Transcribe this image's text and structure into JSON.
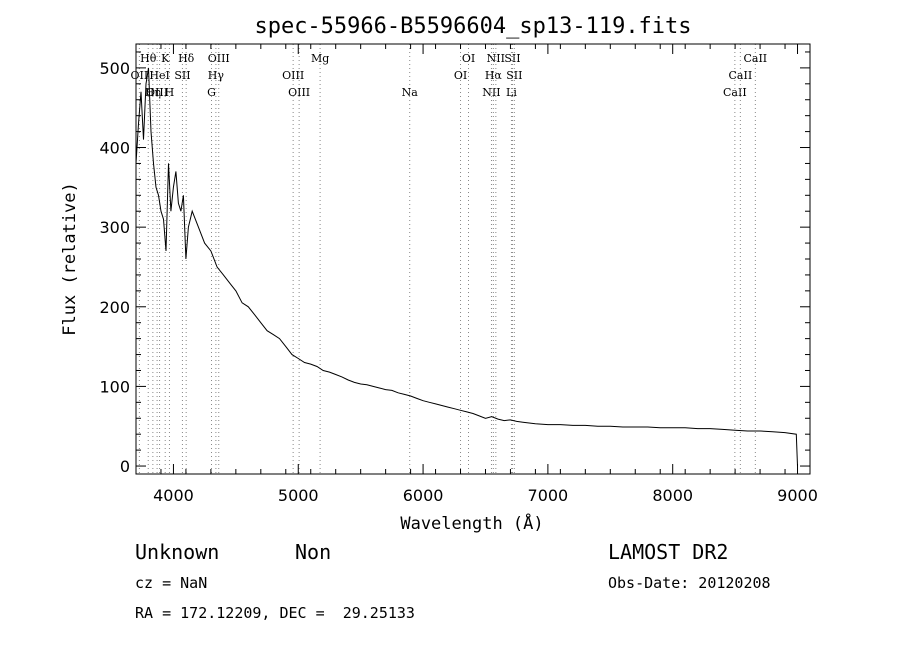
{
  "chart_data": {
    "type": "line",
    "title": "spec-55966-B5596604_sp13-119.fits",
    "xlabel": "Wavelength (Å)",
    "ylabel": "Flux (relative)",
    "xlim": [
      3700,
      9100
    ],
    "ylim": [
      -10,
      530
    ],
    "xticks": [
      4000,
      5000,
      6000,
      7000,
      8000,
      9000
    ],
    "yticks": [
      0,
      100,
      200,
      300,
      400,
      500
    ],
    "grid": false,
    "series": [
      {
        "x": [
          3700,
          3720,
          3740,
          3760,
          3780,
          3800,
          3820,
          3840,
          3860,
          3880,
          3900,
          3920,
          3940,
          3960,
          3980,
          4000,
          4020,
          4040,
          4060,
          4080,
          4100,
          4120,
          4150,
          4200,
          4250,
          4300,
          4350,
          4400,
          4450,
          4500,
          4550,
          4600,
          4650,
          4700,
          4750,
          4800,
          4850,
          4900,
          4950,
          5000,
          5050,
          5100,
          5150,
          5200,
          5250,
          5300,
          5350,
          5400,
          5450,
          5500,
          5550,
          5600,
          5650,
          5700,
          5750,
          5800,
          5850,
          5900,
          5950,
          6000,
          6050,
          6100,
          6150,
          6200,
          6250,
          6300,
          6350,
          6400,
          6450,
          6500,
          6550,
          6600,
          6650,
          6700,
          6750,
          6800,
          6900,
          7000,
          7100,
          7200,
          7300,
          7400,
          7500,
          7600,
          7700,
          7800,
          7900,
          8000,
          8100,
          8200,
          8300,
          8400,
          8500,
          8600,
          8700,
          8800,
          8900,
          8990,
          9000
        ],
        "y": [
          380,
          430,
          470,
          410,
          480,
          500,
          420,
          380,
          350,
          340,
          320,
          310,
          270,
          380,
          320,
          350,
          370,
          330,
          320,
          340,
          260,
          300,
          320,
          300,
          280,
          270,
          250,
          240,
          230,
          220,
          205,
          200,
          190,
          180,
          170,
          165,
          160,
          150,
          140,
          135,
          130,
          128,
          125,
          120,
          118,
          115,
          112,
          108,
          105,
          103,
          102,
          100,
          98,
          96,
          95,
          92,
          90,
          88,
          85,
          82,
          80,
          78,
          76,
          74,
          72,
          70,
          68,
          66,
          63,
          60,
          62,
          59,
          57,
          58,
          56,
          55,
          53,
          52,
          52,
          51,
          51,
          50,
          50,
          49,
          49,
          49,
          48,
          48,
          48,
          47,
          47,
          46,
          45,
          44,
          44,
          43,
          42,
          40,
          0
        ],
        "color": "#000000"
      }
    ],
    "lines": [
      {
        "name": "OII",
        "wave": 3727,
        "row": 1
      },
      {
        "name": "OIII",
        "wave": 3869,
        "row": 2
      },
      {
        "name": "Hθ",
        "wave": 3798,
        "row": 0
      },
      {
        "name": "Hη",
        "wave": 3835,
        "row": 2
      },
      {
        "name": "HeI",
        "wave": 3889,
        "row": 1
      },
      {
        "name": "K",
        "wave": 3934,
        "row": 0
      },
      {
        "name": "SII",
        "wave": 4072,
        "row": 1
      },
      {
        "name": "H",
        "wave": 3968,
        "row": 2
      },
      {
        "name": "Hδ",
        "wave": 4102,
        "row": 0
      },
      {
        "name": "OIII",
        "wave": 4363,
        "row": 0
      },
      {
        "name": "Hγ",
        "wave": 4340,
        "row": 1
      },
      {
        "name": "G",
        "wave": 4305,
        "row": 2
      },
      {
        "name": "OIII",
        "wave": 4959,
        "row": 1
      },
      {
        "name": "OIII",
        "wave": 5007,
        "row": 2
      },
      {
        "name": "Mg",
        "wave": 5175,
        "row": 0
      },
      {
        "name": "Na",
        "wave": 5893,
        "row": 2
      },
      {
        "name": "OI",
        "wave": 6300,
        "row": 1
      },
      {
        "name": "OI",
        "wave": 6364,
        "row": 0
      },
      {
        "name": "NII",
        "wave": 6548,
        "row": 2
      },
      {
        "name": "Hα",
        "wave": 6563,
        "row": 1
      },
      {
        "name": "NII",
        "wave": 6583,
        "row": 0
      },
      {
        "name": "SII",
        "wave": 6716,
        "row": 0
      },
      {
        "name": "SII",
        "wave": 6731,
        "row": 1
      },
      {
        "name": "Li",
        "wave": 6708,
        "row": 2
      },
      {
        "name": "CaII",
        "wave": 8498,
        "row": 2
      },
      {
        "name": "CaII",
        "wave": 8542,
        "row": 1
      },
      {
        "name": "CaII",
        "wave": 8662,
        "row": 0
      }
    ]
  },
  "info": {
    "class": "Unknown",
    "subclass": "Non",
    "survey": "LAMOST DR2",
    "cz": "cz = NaN",
    "obs_date": "Obs-Date: 20120208",
    "coords": "RA = 172.12209, DEC =  29.25133"
  }
}
